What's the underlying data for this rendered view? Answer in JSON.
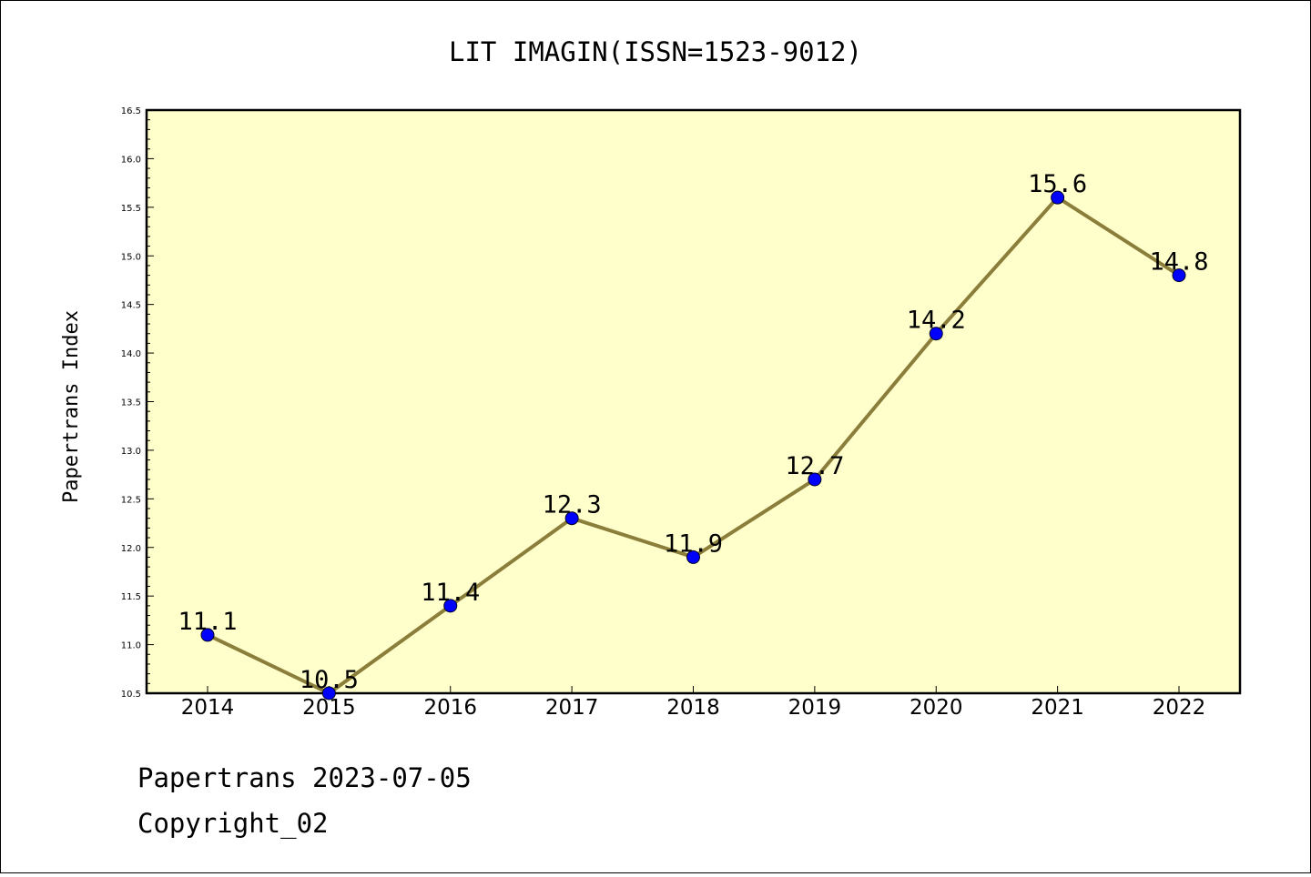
{
  "chart_data": {
    "type": "line",
    "title": "LIT IMAGIN(ISSN=1523-9012)",
    "xlabel": "",
    "ylabel": "Papertrans Index",
    "categories": [
      "2014",
      "2015",
      "2016",
      "2017",
      "2018",
      "2019",
      "2020",
      "2021",
      "2022"
    ],
    "values": [
      11.1,
      10.5,
      11.4,
      12.3,
      11.9,
      12.7,
      14.2,
      15.6,
      14.8
    ],
    "data_labels": [
      "11.1",
      "10.5",
      "11.4",
      "12.3",
      "11.9",
      "12.7",
      "14.2",
      "15.6",
      "14.8"
    ],
    "ylim": [
      10.5,
      16.5
    ],
    "yticks": [
      "10.5",
      "11.0",
      "11.5",
      "12.0",
      "12.5",
      "13.0",
      "13.5",
      "14.0",
      "14.5",
      "15.0",
      "15.5",
      "16.0",
      "16.5"
    ],
    "grid": false,
    "colors": {
      "plot_background": "#ffffcc",
      "line": "#8b7d3a",
      "marker": "#0000ff"
    }
  },
  "footer": {
    "line1": "Papertrans 2023-07-05",
    "line2": "Copyright_02"
  }
}
